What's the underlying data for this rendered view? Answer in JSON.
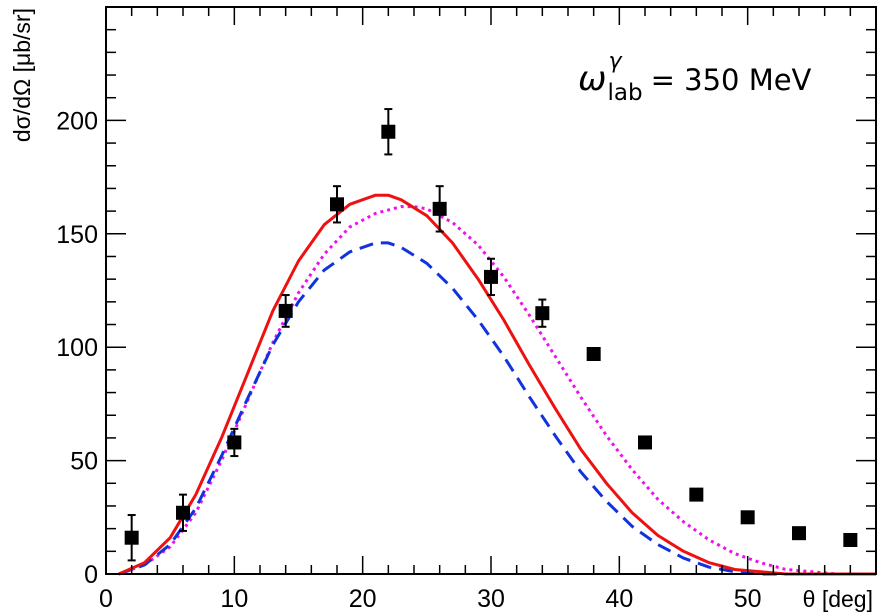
{
  "chart_data": {
    "type": "scatter",
    "title": "",
    "xlabel": "θ [deg]",
    "ylabel": "dσ/dΩ [μb/sr]",
    "xlim": [
      0,
      60
    ],
    "ylim": [
      0,
      250
    ],
    "x_ticks": [
      0,
      10,
      20,
      30,
      40,
      50
    ],
    "y_ticks": [
      0,
      50,
      100,
      150,
      200
    ],
    "annotation": {
      "symbol": "ω",
      "superscript": "γ",
      "subscript": "lab",
      "text": "= 350 MeV"
    },
    "colors": {
      "data": "#000000",
      "solid": "#ee1111",
      "dotted": "#ee11ee",
      "dashed": "#1133dd"
    },
    "data_points": {
      "name": "data",
      "x": [
        2,
        6,
        10,
        14,
        18,
        22,
        26,
        30,
        34,
        38,
        42,
        46,
        50,
        54,
        58
      ],
      "y": [
        16,
        27,
        58,
        116,
        163,
        195,
        161,
        131,
        115,
        97,
        58,
        35,
        25,
        18,
        15
      ],
      "err": [
        10,
        8,
        6,
        7,
        8,
        10,
        10,
        8,
        6,
        null,
        null,
        null,
        null,
        null,
        null
      ]
    },
    "series": [
      {
        "name": "solid (red)",
        "style": "solid",
        "x": [
          1,
          3,
          5,
          7,
          9,
          11,
          13,
          15,
          17,
          19,
          21,
          22,
          23,
          25,
          27,
          29,
          31,
          33,
          35,
          37,
          39,
          41,
          43,
          45,
          47,
          49,
          51,
          53,
          55,
          57,
          59,
          60
        ],
        "y": [
          0,
          5,
          16,
          35,
          60,
          88,
          116,
          138,
          154,
          163,
          167,
          167,
          165,
          158,
          146,
          130,
          112,
          92,
          73,
          55,
          40,
          27,
          17,
          10,
          5,
          2,
          1,
          0,
          0,
          0,
          0,
          0
        ]
      },
      {
        "name": "dotted (magenta)",
        "style": "dotted",
        "x": [
          1,
          3,
          5,
          7,
          9,
          11,
          13,
          15,
          17,
          19,
          21,
          23,
          24,
          25,
          27,
          29,
          31,
          33,
          35,
          37,
          39,
          41,
          43,
          45,
          47,
          49,
          51,
          53,
          55,
          57,
          59,
          60
        ],
        "y": [
          0,
          4,
          12,
          27,
          50,
          76,
          102,
          124,
          141,
          153,
          159,
          162,
          162,
          161,
          155,
          145,
          131,
          114,
          96,
          78,
          61,
          46,
          33,
          23,
          15,
          9,
          5,
          2,
          1,
          0,
          0,
          0
        ]
      },
      {
        "name": "dashed (blue)",
        "style": "dashed",
        "x": [
          1,
          3,
          5,
          7,
          9,
          11,
          13,
          15,
          17,
          19,
          21,
          22,
          23,
          25,
          27,
          29,
          31,
          33,
          35,
          37,
          39,
          41,
          43,
          45,
          47,
          49,
          51,
          53,
          55,
          57,
          59,
          60
        ],
        "y": [
          0,
          4,
          13,
          29,
          52,
          77,
          101,
          120,
          134,
          142,
          146,
          146,
          144,
          137,
          126,
          112,
          96,
          78,
          61,
          45,
          32,
          21,
          13,
          7,
          3,
          1,
          0,
          0,
          0,
          0,
          0,
          0
        ]
      }
    ]
  }
}
